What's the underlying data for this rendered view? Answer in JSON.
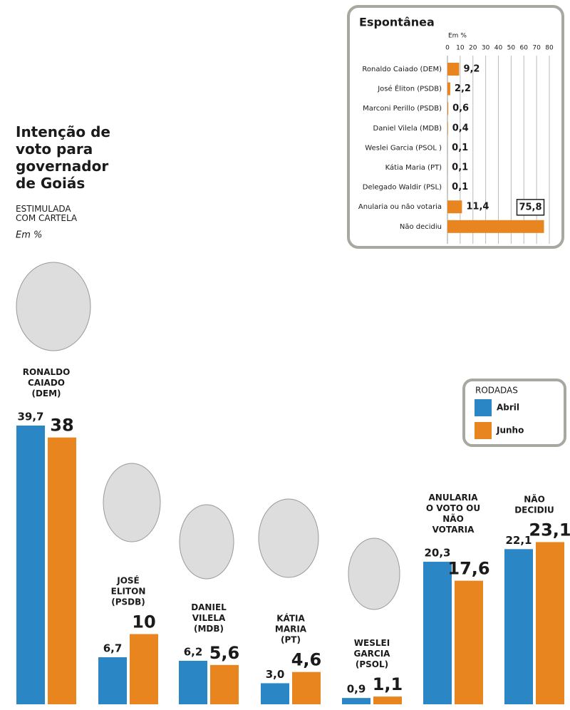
{
  "chart_data": [
    {
      "type": "bar",
      "title": "Intenção de\nvoto para\ngovernador\nde Goiás",
      "subtitle": "ESTIMULADA\nCOM CARTELA",
      "unit": "Em %",
      "legend_title": "RODADAS",
      "legend": "right",
      "categories": [
        "RONALDO\nCAIADO\n(DEM)",
        "JOSÉ\nELITON\n(PSDB)",
        "DANIEL\nVILELA\n(MDB)",
        "KÁTIA\nMARIA\n(PT)",
        "WESLEI\nGARCIA\n(PSOL)",
        "ANULARIA\nO VOTO OU\nNÃO\nVOTARIA",
        "NÃO\nDECIDIU"
      ],
      "series": [
        {
          "name": "Abril",
          "color": "#2b86c5",
          "values": [
            39.7,
            6.7,
            6.2,
            3.0,
            0.9,
            20.3,
            22.1
          ],
          "value_labels": [
            "39,7",
            "6,7",
            "6,2",
            "3,0",
            "0,9",
            "20,3",
            "22,1"
          ]
        },
        {
          "name": "Junho",
          "color": "#e8851e",
          "values": [
            38,
            10,
            5.6,
            4.6,
            1.1,
            17.6,
            23.1
          ],
          "value_labels": [
            "38",
            "10",
            "5,6",
            "4,6",
            "1,1",
            "17,6",
            "23,1"
          ]
        }
      ]
    },
    {
      "type": "hbar",
      "title": "Espontânea",
      "xlabel": "Em %",
      "color": "#e8851e",
      "grid": true,
      "xlim": [
        0,
        80
      ],
      "xticks": [
        0,
        10,
        20,
        30,
        40,
        50,
        60,
        70,
        80
      ],
      "categories": [
        "Ronaldo Caiado (DEM)",
        "José Éliton (PSDB)",
        "Marconi Perillo (PSDB)",
        "Daniel Vilela (MDB)",
        "Weslei Garcia (PSOL )",
        "Kátia Maria (PT)",
        "Delegado Waldir (PSL)",
        "Anularia ou não votaria",
        "Não decidiu"
      ],
      "values": [
        9.2,
        2.2,
        0.6,
        0.4,
        0.1,
        0.1,
        0.1,
        11.4,
        75.8
      ],
      "value_labels": [
        "9,2",
        "2,2",
        "0,6",
        "0,4",
        "0,1",
        "0,1",
        "0,1",
        "11,4",
        "75,8"
      ]
    }
  ]
}
